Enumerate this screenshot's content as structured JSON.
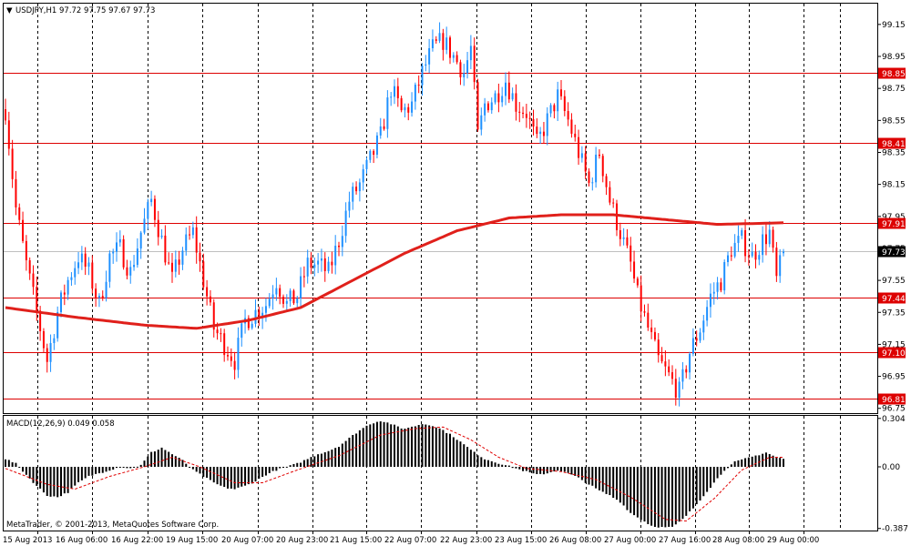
{
  "header": {
    "dropdown_glyph": "▼",
    "symbol_info": "USDJPY,H1  97.72 97.75 97.67 97.73"
  },
  "copyright": "MetaTrader, © 2001-2013, MetaQuotes Software Corp.",
  "colors": {
    "background": "#ffffff",
    "grid": "#000000",
    "bull_candle": "#1e90ff",
    "bear_candle": "#ff0000",
    "moving_average": "#e0201b",
    "levels": "#dd0000",
    "last_price_line": "#c0c0c0",
    "macd_histogram": "#000000",
    "macd_signal": "#e00000"
  },
  "chart_data": [
    {
      "type": "candlestick",
      "symbol": "USDJPY",
      "timeframe": "H1",
      "last_bar": {
        "open": 97.72,
        "high": 97.75,
        "low": 97.67,
        "close": 97.73
      },
      "ylim": [
        96.72,
        99.28
      ],
      "y_ticks": [
        "99.15",
        "98.95",
        "98.75",
        "98.55",
        "98.35",
        "98.15",
        "97.95",
        "97.75",
        "97.55",
        "97.35",
        "97.15",
        "96.95",
        "96.75"
      ],
      "x_tick_labels": [
        "15 Aug 2013",
        "16 Aug 06:00",
        "16 Aug 22:00",
        "19 Aug 15:00",
        "20 Aug 07:00",
        "20 Aug 23:00",
        "21 Aug 15:00",
        "22 Aug 07:00",
        "22 Aug 23:00",
        "23 Aug 15:00",
        "26 Aug 08:00",
        "27 Aug 00:00",
        "27 Aug 16:00",
        "28 Aug 08:00",
        "29 Aug 00:00"
      ],
      "horizontal_levels": [
        {
          "value": 98.85,
          "label": "98.85"
        },
        {
          "value": 98.41,
          "label": "98.41"
        },
        {
          "value": 97.91,
          "label": "97.91"
        },
        {
          "value": 97.44,
          "label": "97.44"
        },
        {
          "value": 97.1,
          "label": "97.10"
        },
        {
          "value": 96.81,
          "label": "96.81"
        }
      ],
      "current_price": {
        "value": 97.73,
        "label": "97.73"
      },
      "price_path": [
        [
          0,
          98.62
        ],
        [
          3,
          98.0
        ],
        [
          6,
          97.65
        ],
        [
          9,
          97.35
        ],
        [
          12,
          97.05
        ],
        [
          15,
          97.35
        ],
        [
          18,
          97.55
        ],
        [
          21,
          97.7
        ],
        [
          24,
          97.6
        ],
        [
          27,
          97.4
        ],
        [
          30,
          97.7
        ],
        [
          33,
          97.75
        ],
        [
          36,
          97.6
        ],
        [
          39,
          97.85
        ],
        [
          42,
          98.05
        ],
        [
          45,
          97.8
        ],
        [
          48,
          97.55
        ],
        [
          51,
          97.75
        ],
        [
          54,
          97.85
        ],
        [
          57,
          97.55
        ],
        [
          60,
          97.25
        ],
        [
          63,
          97.15
        ],
        [
          66,
          97.05
        ],
        [
          69,
          97.3
        ],
        [
          72,
          97.35
        ],
        [
          75,
          97.4
        ],
        [
          78,
          97.55
        ],
        [
          81,
          97.4
        ],
        [
          84,
          97.45
        ],
        [
          87,
          97.65
        ],
        [
          90,
          97.65
        ],
        [
          93,
          97.6
        ],
        [
          96,
          97.8
        ],
        [
          99,
          98.05
        ],
        [
          102,
          98.15
        ],
        [
          105,
          98.3
        ],
        [
          108,
          98.45
        ],
        [
          111,
          98.75
        ],
        [
          114,
          98.6
        ],
        [
          117,
          98.65
        ],
        [
          120,
          98.85
        ],
        [
          123,
          99.0
        ],
        [
          126,
          99.05
        ],
        [
          129,
          98.95
        ],
        [
          132,
          98.85
        ],
        [
          134,
          99.0
        ],
        [
          136,
          98.45
        ],
        [
          138,
          98.65
        ],
        [
          141,
          98.7
        ],
        [
          144,
          98.8
        ],
        [
          147,
          98.65
        ],
        [
          150,
          98.6
        ],
        [
          153,
          98.4
        ],
        [
          156,
          98.55
        ],
        [
          159,
          98.7
        ],
        [
          162,
          98.55
        ],
        [
          165,
          98.35
        ],
        [
          168,
          98.15
        ],
        [
          171,
          98.35
        ],
        [
          174,
          98.05
        ],
        [
          177,
          97.85
        ],
        [
          180,
          97.65
        ],
        [
          182,
          97.45
        ],
        [
          185,
          97.25
        ],
        [
          188,
          97.05
        ],
        [
          191,
          96.95
        ],
        [
          194,
          96.85
        ],
        [
          197,
          97.1
        ],
        [
          200,
          97.25
        ],
        [
          203,
          97.45
        ],
        [
          206,
          97.55
        ],
        [
          209,
          97.75
        ],
        [
          212,
          97.8
        ],
        [
          215,
          97.7
        ],
        [
          218,
          97.8
        ],
        [
          220,
          97.85
        ],
        [
          222,
          97.55
        ],
        [
          224,
          97.73
        ]
      ],
      "moving_average_path": [
        [
          0,
          97.38
        ],
        [
          20,
          97.32
        ],
        [
          40,
          97.27
        ],
        [
          55,
          97.25
        ],
        [
          70,
          97.3
        ],
        [
          85,
          97.38
        ],
        [
          100,
          97.55
        ],
        [
          115,
          97.72
        ],
        [
          130,
          97.86
        ],
        [
          145,
          97.94
        ],
        [
          160,
          97.96
        ],
        [
          175,
          97.96
        ],
        [
          190,
          97.93
        ],
        [
          205,
          97.9
        ],
        [
          224,
          97.91
        ]
      ]
    },
    {
      "type": "macd",
      "name": "MACD(12,26,9)",
      "readout": "MACD(12,26,9) 0.049 0.058",
      "main": 0.049,
      "signal": 0.058,
      "ylim": [
        -0.4,
        0.32
      ],
      "y_ticks": [
        "0.304",
        "0.00",
        "-0.387"
      ],
      "histogram_path": [
        [
          0,
          0.05
        ],
        [
          3,
          0.02
        ],
        [
          6,
          -0.05
        ],
        [
          9,
          -0.12
        ],
        [
          12,
          -0.18
        ],
        [
          15,
          -0.19
        ],
        [
          18,
          -0.16
        ],
        [
          21,
          -0.1
        ],
        [
          24,
          -0.06
        ],
        [
          27,
          -0.04
        ],
        [
          30,
          -0.02
        ],
        [
          33,
          0.0
        ],
        [
          36,
          -0.01
        ],
        [
          39,
          0.01
        ],
        [
          42,
          0.09
        ],
        [
          45,
          0.12
        ],
        [
          48,
          0.08
        ],
        [
          51,
          0.04
        ],
        [
          54,
          -0.02
        ],
        [
          57,
          -0.06
        ],
        [
          60,
          -0.1
        ],
        [
          63,
          -0.13
        ],
        [
          66,
          -0.14
        ],
        [
          69,
          -0.12
        ],
        [
          72,
          -0.09
        ],
        [
          75,
          -0.05
        ],
        [
          78,
          -0.02
        ],
        [
          81,
          0.0
        ],
        [
          84,
          0.02
        ],
        [
          87,
          0.05
        ],
        [
          90,
          0.08
        ],
        [
          93,
          0.1
        ],
        [
          96,
          0.13
        ],
        [
          99,
          0.18
        ],
        [
          102,
          0.23
        ],
        [
          105,
          0.27
        ],
        [
          108,
          0.29
        ],
        [
          111,
          0.27
        ],
        [
          114,
          0.24
        ],
        [
          117,
          0.25
        ],
        [
          120,
          0.27
        ],
        [
          123,
          0.26
        ],
        [
          126,
          0.23
        ],
        [
          129,
          0.19
        ],
        [
          132,
          0.14
        ],
        [
          135,
          0.09
        ],
        [
          138,
          0.05
        ],
        [
          141,
          0.03
        ],
        [
          144,
          0.01
        ],
        [
          147,
          -0.01
        ],
        [
          150,
          -0.03
        ],
        [
          153,
          -0.05
        ],
        [
          156,
          -0.04
        ],
        [
          159,
          -0.02
        ],
        [
          162,
          -0.04
        ],
        [
          165,
          -0.07
        ],
        [
          168,
          -0.11
        ],
        [
          171,
          -0.15
        ],
        [
          174,
          -0.18
        ],
        [
          177,
          -0.22
        ],
        [
          180,
          -0.29
        ],
        [
          183,
          -0.33
        ],
        [
          186,
          -0.37
        ],
        [
          189,
          -0.38
        ],
        [
          192,
          -0.38
        ],
        [
          195,
          -0.33
        ],
        [
          198,
          -0.26
        ],
        [
          201,
          -0.18
        ],
        [
          204,
          -0.1
        ],
        [
          207,
          -0.02
        ],
        [
          210,
          0.03
        ],
        [
          213,
          0.05
        ],
        [
          216,
          0.07
        ],
        [
          219,
          0.09
        ],
        [
          222,
          0.06
        ],
        [
          224,
          0.05
        ]
      ],
      "signal_path": [
        [
          0,
          -0.01
        ],
        [
          12,
          -0.11
        ],
        [
          20,
          -0.14
        ],
        [
          30,
          -0.06
        ],
        [
          40,
          0.0
        ],
        [
          48,
          0.06
        ],
        [
          56,
          0.0
        ],
        [
          66,
          -0.1
        ],
        [
          74,
          -0.1
        ],
        [
          84,
          -0.02
        ],
        [
          96,
          0.07
        ],
        [
          108,
          0.2
        ],
        [
          118,
          0.24
        ],
        [
          126,
          0.25
        ],
        [
          134,
          0.17
        ],
        [
          142,
          0.06
        ],
        [
          150,
          -0.01
        ],
        [
          160,
          -0.03
        ],
        [
          170,
          -0.08
        ],
        [
          180,
          -0.19
        ],
        [
          190,
          -0.33
        ],
        [
          196,
          -0.34
        ],
        [
          204,
          -0.2
        ],
        [
          212,
          -0.02
        ],
        [
          220,
          0.06
        ],
        [
          224,
          0.06
        ]
      ]
    }
  ]
}
